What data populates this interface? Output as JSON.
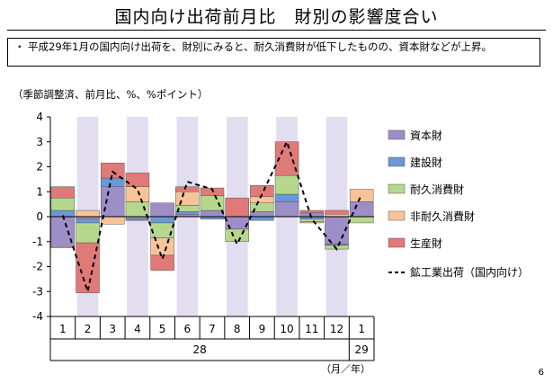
{
  "title": "国内向け出荷前月比　財別の影響度合い",
  "note": "平成29年1月の国内向け出荷を、財別にみると、耐久消費財が低下したものの、資本財などが上昇。",
  "note_bullet": "・",
  "units_label": "（季節調整済、前月比、%、%ポイント）",
  "page_number": "6",
  "colors": {
    "capital": "#9E8EC7",
    "construction": "#6B98D6",
    "durable": "#B6D88C",
    "nondurable": "#F7C49A",
    "producer": "#E07A78",
    "line": "#000000",
    "shade": "#E3DDF0"
  },
  "chart_data": {
    "type": "bar",
    "stacked": true,
    "categories": [
      "1",
      "2",
      "3",
      "4",
      "5",
      "6",
      "7",
      "8",
      "9",
      "10",
      "11",
      "12",
      "1"
    ],
    "year_labels": [
      {
        "label": "28",
        "category_index": 5.5
      },
      {
        "label": "29",
        "category_index": 12
      }
    ],
    "x_unit_label": "（月／年）",
    "ylim": [
      -4,
      4
    ],
    "yticks": [
      -4,
      -3,
      -2,
      -1,
      0,
      1,
      2,
      3,
      4
    ],
    "shaded_categories": [
      1,
      3,
      5,
      7,
      9,
      11
    ],
    "legend_position": "right",
    "series": [
      {
        "name": "資本財",
        "color_key": "capital",
        "values": [
          -1.2,
          -0.1,
          1.2,
          -0.1,
          0.55,
          0.1,
          0.25,
          -0.5,
          0.2,
          0.6,
          0.15,
          -1.1,
          0.6
        ]
      },
      {
        "name": "建設財",
        "color_key": "construction",
        "values": [
          0.25,
          -0.15,
          0.35,
          -0.05,
          -0.25,
          0.1,
          -0.1,
          0.0,
          -0.15,
          0.3,
          -0.1,
          -0.05,
          0.0
        ]
      },
      {
        "name": "耐久消費財",
        "color_key": "durable",
        "values": [
          0.5,
          -0.8,
          0.0,
          0.6,
          -0.6,
          0.25,
          0.6,
          -0.5,
          0.35,
          0.75,
          -0.1,
          -0.15,
          -0.25
        ]
      },
      {
        "name": "非耐久消費財",
        "color_key": "nondurable",
        "values": [
          -0.05,
          0.25,
          -0.3,
          0.6,
          -0.7,
          0.55,
          0.0,
          0.0,
          0.25,
          0.0,
          -0.05,
          0.1,
          0.5
        ]
      },
      {
        "name": "生産財",
        "color_key": "producer",
        "values": [
          0.45,
          -2.0,
          0.6,
          0.55,
          -0.6,
          0.2,
          0.3,
          0.75,
          0.45,
          1.35,
          0.1,
          0.15,
          0.0
        ]
      }
    ],
    "line_series": {
      "name": "鉱工業出荷（国内向け）",
      "values": [
        0.05,
        -3.0,
        1.8,
        1.1,
        -1.7,
        1.4,
        1.1,
        -1.1,
        0.9,
        3.0,
        -0.1,
        -1.3,
        0.9
      ]
    }
  }
}
